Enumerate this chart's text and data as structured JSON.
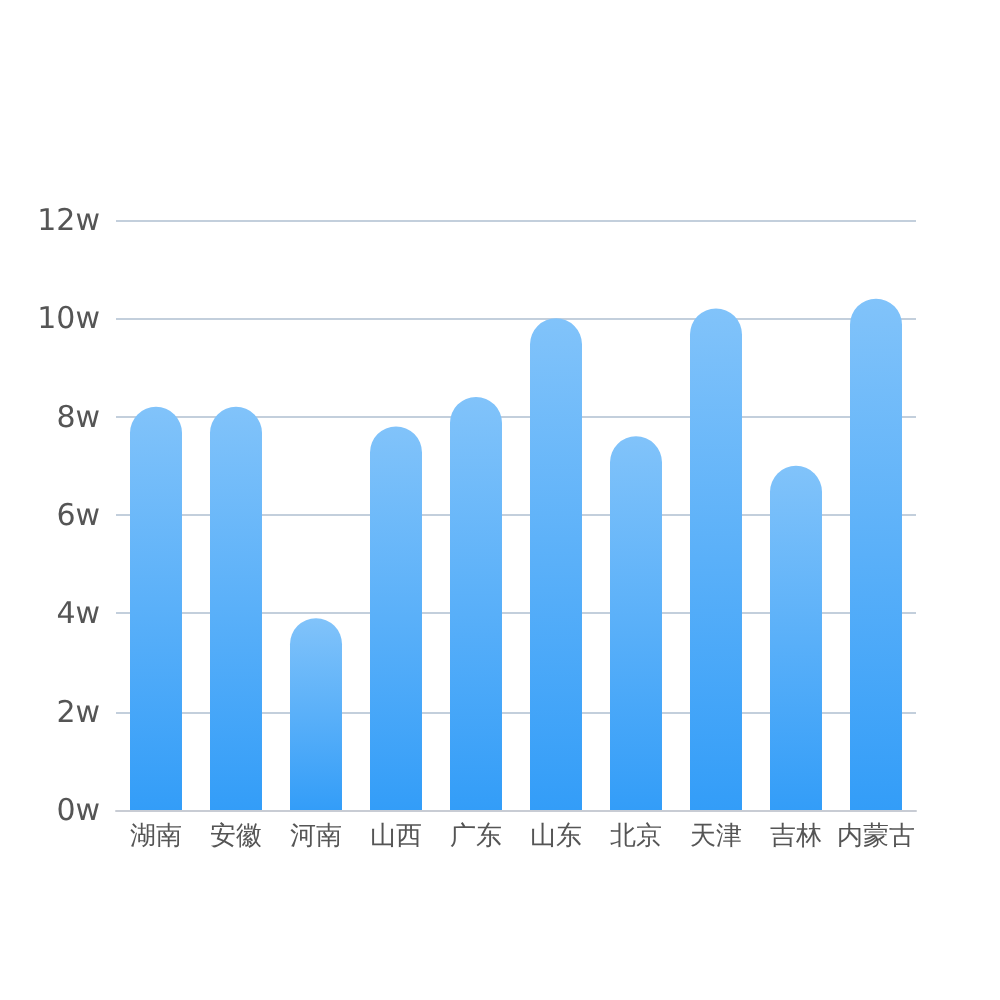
{
  "chart_data": {
    "type": "bar",
    "categories": [
      "湖南",
      "安徽",
      "河南",
      "山西",
      "广东",
      "山东",
      "北京",
      "天津",
      "吉林",
      "内蒙古"
    ],
    "values": [
      8.2,
      8.2,
      3.9,
      7.8,
      8.4,
      10.0,
      7.6,
      10.2,
      7.0,
      10.4
    ],
    "color": "#5ab0f9",
    "ylim": [
      0,
      12
    ],
    "yticks": [
      {
        "value": 0,
        "label": "0w"
      },
      {
        "value": 2,
        "label": "2w"
      },
      {
        "value": 4,
        "label": "4w"
      },
      {
        "value": 6,
        "label": "6w"
      },
      {
        "value": 8,
        "label": "8w"
      },
      {
        "value": 10,
        "label": "10w"
      },
      {
        "value": 12,
        "label": "12w"
      }
    ],
    "grid": "y"
  }
}
